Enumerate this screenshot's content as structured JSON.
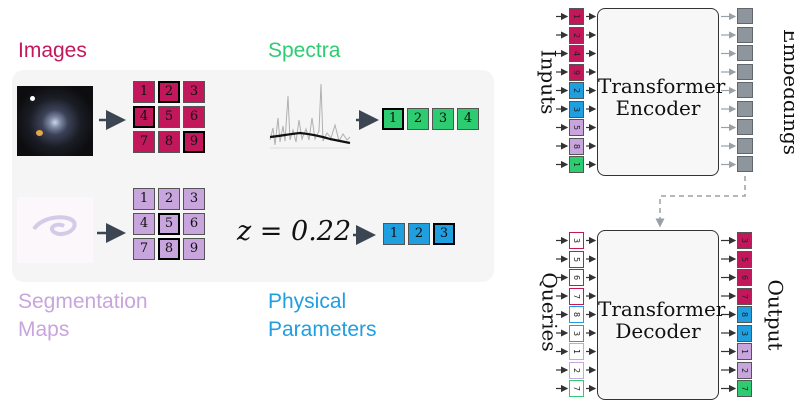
{
  "left": {
    "images_title": "Images",
    "spectra_title": "Spectra",
    "segmentation_title_line1": "Segmentation",
    "segmentation_title_line2": "Maps",
    "physical_title_line1": "Physical",
    "physical_title_line2": "Parameters",
    "equation": "z = 0.22",
    "images_grid": [
      "1",
      "2",
      "3",
      "4",
      "5",
      "6",
      "7",
      "8",
      "9"
    ],
    "images_grid_highlight": [
      "2",
      "4",
      "9"
    ],
    "segmentation_grid": [
      "1",
      "2",
      "3",
      "4",
      "5",
      "6",
      "7",
      "8",
      "9"
    ],
    "segmentation_grid_highlight": [
      "5",
      "8"
    ],
    "spectra_row": [
      "1",
      "2",
      "3",
      "4"
    ],
    "spectra_row_highlight": [
      "1"
    ],
    "params_row": [
      "1",
      "2",
      "3"
    ],
    "params_row_highlight": [
      "3"
    ]
  },
  "encoder": {
    "title_line1": "Transformer",
    "title_line2": "Encoder",
    "inputs_label": "Inputs",
    "embeddings_label": "Embeddings",
    "input_tokens": [
      "1",
      "2",
      "4",
      "9",
      "2",
      "3",
      "5",
      "8",
      "1"
    ]
  },
  "decoder": {
    "title_line1": "Transformer",
    "title_line2": "Decoder",
    "queries_label": "Queries",
    "output_label": "Output",
    "query_tokens": [
      "3",
      "5",
      "6",
      "7",
      "8",
      "3",
      "1",
      "2",
      "7"
    ],
    "output_tokens": [
      "3",
      "5",
      "6",
      "7",
      "8",
      "3",
      "1",
      "2",
      "7"
    ]
  },
  "colors": {
    "images": "#c2185b",
    "spectra": "#2ecc71",
    "segmentation": "#c9a5dd",
    "physical": "#1f9ee0",
    "embedding": "#8e959d",
    "panel": "#f5f5f5"
  }
}
